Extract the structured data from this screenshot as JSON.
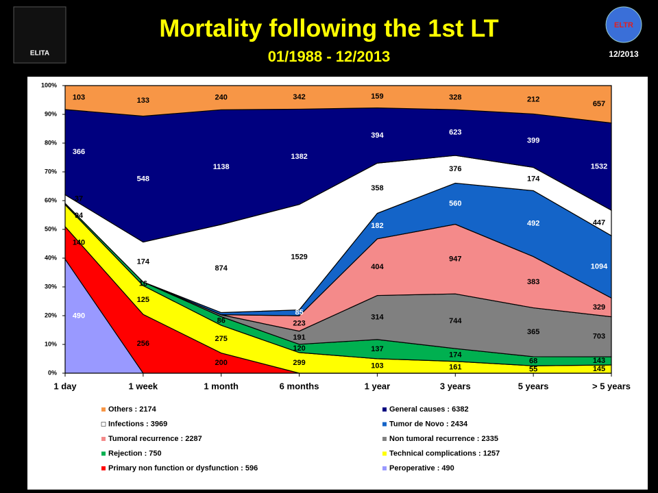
{
  "header": {
    "left_logo": "ELITA",
    "right_logo": "ELTR",
    "date": "12/2013"
  },
  "chart_data": {
    "type": "stacked_area_percent",
    "title": "Mortality following the 1st LT",
    "subtitle": "01/1988 - 12/2013",
    "categories": [
      "1 day",
      "1 week",
      "1 month",
      "6 months",
      "1 year",
      "3 years",
      "5 years",
      "> 5 years"
    ],
    "ylim": [
      0,
      100
    ],
    "yticks": [
      {
        "value": 0,
        "label": "0%"
      },
      {
        "value": 10,
        "label": "10%"
      },
      {
        "value": 20,
        "label": "20%"
      },
      {
        "value": 30,
        "label": "30%"
      },
      {
        "value": 40,
        "label": "40%"
      },
      {
        "value": 50,
        "label": "50%"
      },
      {
        "value": 60,
        "label": "60%"
      },
      {
        "value": 70,
        "label": "70%"
      },
      {
        "value": 80,
        "label": "80%"
      },
      {
        "value": 90,
        "label": "90%"
      },
      {
        "value": 100,
        "label": "100%"
      }
    ],
    "series": [
      {
        "name": "Peroperative : 490",
        "color": "#9999ff",
        "values": [
          490,
          0,
          0,
          0,
          0,
          0,
          0,
          0
        ]
      },
      {
        "name": "Primary non function or dysfunction : 596",
        "color": "#ff0000",
        "values": [
          140,
          256,
          200,
          0,
          0,
          0,
          0,
          0
        ]
      },
      {
        "name": "Technical complications : 1257",
        "color": "#ffff00",
        "values": [
          94,
          125,
          275,
          299,
          103,
          161,
          55,
          145
        ]
      },
      {
        "name": "Rejection : 750",
        "color": "#00b050",
        "values": [
          6,
          16,
          86,
          120,
          137,
          174,
          68,
          143
        ]
      },
      {
        "name": "Non tumoral recurrence : 2335",
        "color": "#808080",
        "values": [
          0,
          0,
          18,
          191,
          314,
          744,
          365,
          703
        ]
      },
      {
        "name": "Tumoral recurrence : 2287",
        "color": "#f48a8a",
        "values": [
          0,
          0,
          1,
          223,
          404,
          947,
          383,
          329
        ]
      },
      {
        "name": "Tumor de Novo : 2434",
        "color": "#1464c8",
        "values": [
          0,
          0,
          21,
          85,
          182,
          560,
          492,
          1094
        ]
      },
      {
        "name": "Infections : 3969",
        "color": "#ffffff",
        "values": [
          37,
          174,
          874,
          1529,
          358,
          376,
          174,
          447
        ]
      },
      {
        "name": "General causes : 6382",
        "color": "#00007f",
        "values": [
          366,
          548,
          1138,
          1382,
          394,
          623,
          399,
          1532
        ]
      },
      {
        "name": "Others : 2174",
        "color": "#f79646",
        "values": [
          103,
          133,
          240,
          342,
          159,
          328,
          212,
          657
        ]
      }
    ]
  }
}
